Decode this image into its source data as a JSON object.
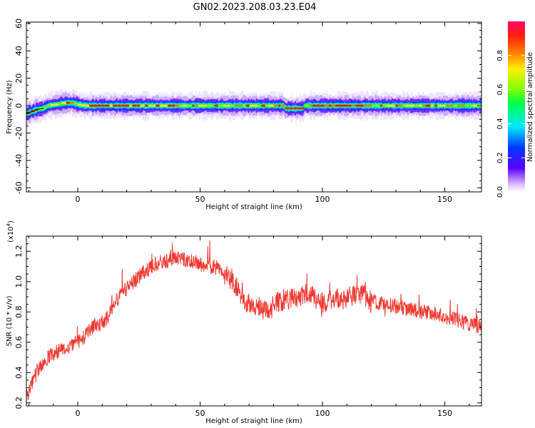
{
  "title": "GN02.2023.208.03.23.E04",
  "colors": {
    "line": "#ee3a32",
    "axis": "#000000"
  },
  "chart_data": [
    {
      "type": "heatmap",
      "xlabel": "Height of straight line (km)",
      "ylabel": "Frequency (Hz)",
      "xlim": [
        -21,
        165
      ],
      "ylim": [
        -63,
        61
      ],
      "xticks": [
        0,
        50,
        100,
        150
      ],
      "yticks": [
        -60,
        -40,
        -20,
        0,
        20,
        40,
        60
      ],
      "ridge": [
        [
          -21,
          -6
        ],
        [
          -17,
          -3
        ],
        [
          -14,
          -2
        ],
        [
          -12,
          0
        ],
        [
          -8,
          1
        ],
        [
          -5,
          2
        ],
        [
          -2,
          2
        ],
        [
          0,
          1
        ],
        [
          3,
          0
        ],
        [
          5,
          0
        ],
        [
          8,
          0
        ],
        [
          84,
          0
        ],
        [
          85,
          -2
        ],
        [
          92,
          -2
        ],
        [
          93,
          0
        ],
        [
          165,
          0
        ]
      ],
      "colorbar": {
        "label": "Normalized spectral amplitude",
        "range": [
          0,
          1
        ],
        "ticks": [
          0.0,
          0.2,
          0.4,
          0.6,
          0.8
        ],
        "tick_labels": [
          "0.0",
          "0.2",
          "0.4",
          "0.6",
          "0.8"
        ]
      }
    },
    {
      "type": "line",
      "xlabel": "Height of straight line (km)",
      "ylabel": "SNR (10 * v/v)",
      "y_exponent_label": "(x10",
      "y_exponent": "4",
      "y_exponent_close": ")",
      "xlim": [
        -21,
        165
      ],
      "ylim": [
        0.18,
        1.3
      ],
      "xticks": [
        0,
        50,
        100,
        150
      ],
      "yticks": [
        0.2,
        0.4,
        0.6,
        0.8,
        1.0,
        1.2
      ],
      "ytick_labels": [
        "0.2",
        "0.4",
        "0.6",
        "0.8",
        "1.0",
        "1.2"
      ],
      "series": [
        {
          "x": [
            -21,
            -18,
            -15,
            -12,
            -9,
            -6,
            -3,
            0,
            3,
            6,
            9,
            12,
            15,
            18,
            21,
            24,
            27,
            30,
            33,
            36,
            39,
            42,
            45,
            48,
            51,
            54,
            57,
            60,
            63,
            66,
            69,
            72,
            75,
            78,
            81,
            84,
            87,
            90,
            93,
            96,
            99,
            102,
            105,
            108,
            111,
            114,
            117,
            120,
            123,
            126,
            129,
            132,
            135,
            138,
            141,
            144,
            147,
            150,
            153,
            156,
            159,
            162,
            165
          ],
          "values": [
            0.24,
            0.36,
            0.44,
            0.5,
            0.53,
            0.55,
            0.58,
            0.6,
            0.64,
            0.7,
            0.72,
            0.76,
            0.85,
            0.93,
            0.97,
            1.02,
            1.06,
            1.1,
            1.12,
            1.14,
            1.15,
            1.15,
            1.14,
            1.13,
            1.11,
            1.1,
            1.09,
            1.05,
            1.02,
            0.93,
            0.86,
            0.84,
            0.82,
            0.8,
            0.86,
            0.88,
            0.89,
            0.9,
            0.92,
            0.9,
            0.86,
            0.87,
            0.89,
            0.88,
            0.9,
            0.92,
            0.91,
            0.87,
            0.86,
            0.85,
            0.84,
            0.83,
            0.82,
            0.81,
            0.8,
            0.79,
            0.78,
            0.77,
            0.76,
            0.74,
            0.73,
            0.71,
            0.7
          ]
        }
      ]
    }
  ]
}
